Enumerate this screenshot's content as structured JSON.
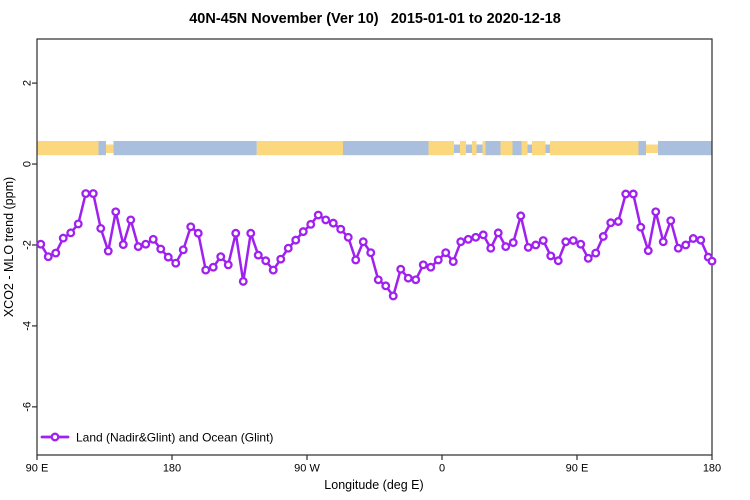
{
  "chart_data": {
    "type": "line",
    "title": "40N-45N November (Ver 10)   2015-01-01 to 2020-12-18",
    "xlabel": "Longitude (deg E)",
    "ylabel": "XCO2 - MLO trend (ppm)",
    "xlim": [
      90,
      540
    ],
    "ylim": [
      -7.19,
      3.09
    ],
    "grid": false,
    "x_ticks": [
      {
        "value": 90,
        "label": "90 E"
      },
      {
        "value": 180,
        "label": "180"
      },
      {
        "value": 270,
        "label": "90 W"
      },
      {
        "value": 360,
        "label": "0"
      },
      {
        "value": 450,
        "label": "90 E"
      },
      {
        "value": 540,
        "label": "180"
      }
    ],
    "y_ticks": [
      {
        "value": 2,
        "label": "2"
      },
      {
        "value": 0,
        "label": "0"
      },
      {
        "value": -2,
        "label": "-2"
      },
      {
        "value": -4,
        "label": "-4"
      },
      {
        "value": -6,
        "label": "-6"
      }
    ],
    "legend": {
      "position": "bottom-left"
    },
    "series": [
      {
        "name": "Land (Nadir&Glint) and Ocean (Glint)",
        "color": "#A020F0",
        "marker": "open-circle",
        "x": [
          92.5,
          97.5,
          102.5,
          107.5,
          112.5,
          117.5,
          122.5,
          127.5,
          132.5,
          137.5,
          142.5,
          147.5,
          152.5,
          157.5,
          162.5,
          167.5,
          172.5,
          177.5,
          182.5,
          187.5,
          192.5,
          197.5,
          202.5,
          207.5,
          212.5,
          217.5,
          222.5,
          227.5,
          232.5,
          237.5,
          242.5,
          247.5,
          252.5,
          257.5,
          262.5,
          267.5,
          272.5,
          277.5,
          282.5,
          287.5,
          292.5,
          297.5,
          302.5,
          307.5,
          312.5,
          317.5,
          322.5,
          327.5,
          332.5,
          337.5,
          342.5,
          347.5,
          352.5,
          357.5,
          362.5,
          367.5,
          372.5,
          377.5,
          382.5,
          387.5,
          392.5,
          397.5,
          402.5,
          407.5,
          412.5,
          417.5,
          422.5,
          427.5,
          432.5,
          437.5,
          442.5,
          447.5,
          452.5,
          457.5,
          462.5,
          467.5,
          472.5,
          477.5,
          482.5,
          487.5,
          492.5,
          497.5,
          502.5,
          507.5,
          512.5,
          517.5,
          522.5,
          527.5,
          532.5,
          537.5,
          540
        ],
        "values": [
          -1.98,
          -2.29,
          -2.2,
          -1.83,
          -1.7,
          -1.48,
          -0.73,
          -0.73,
          -1.59,
          -2.15,
          -1.18,
          -1.99,
          -1.38,
          -2.04,
          -1.98,
          -1.86,
          -2.1,
          -2.3,
          -2.45,
          -2.12,
          -1.55,
          -1.71,
          -2.62,
          -2.55,
          -2.29,
          -2.49,
          -1.71,
          -2.9,
          -1.71,
          -2.25,
          -2.39,
          -2.62,
          -2.35,
          -2.08,
          -1.88,
          -1.67,
          -1.49,
          -1.26,
          -1.38,
          -1.46,
          -1.61,
          -1.81,
          -2.37,
          -1.92,
          -2.19,
          -2.86,
          -3.01,
          -3.26,
          -2.6,
          -2.82,
          -2.86,
          -2.49,
          -2.55,
          -2.37,
          -2.19,
          -2.41,
          -1.92,
          -1.86,
          -1.81,
          -1.75,
          -2.08,
          -1.7,
          -2.04,
          -1.94,
          -1.28,
          -2.06,
          -2.0,
          -1.89,
          -2.27,
          -2.39,
          -1.92,
          -1.89,
          -1.98,
          -2.33,
          -2.2,
          -1.79,
          -1.45,
          -1.42,
          -0.74,
          -0.74,
          -1.56,
          -2.14,
          -1.18,
          -1.92,
          -1.4,
          -2.08,
          -2.0,
          -1.84,
          -1.88,
          -2.3,
          -2.4
        ]
      }
    ],
    "land_ocean_band": {
      "description": "horizontal map strip showing land (yellow) vs ocean (blue) along 40N-45N",
      "y_range": [
        0.22,
        0.57
      ],
      "land_color": "#FBD77E",
      "ocean_color": "#A9BFDD",
      "segments": [
        {
          "from": 90,
          "to": 131,
          "surface": "land"
        },
        {
          "from": 131,
          "to": 136,
          "surface": "ocean"
        },
        {
          "from": 136,
          "to": 141,
          "surface": "land",
          "partial": true
        },
        {
          "from": 141,
          "to": 236.5,
          "surface": "ocean"
        },
        {
          "from": 236.5,
          "to": 294,
          "surface": "land"
        },
        {
          "from": 294,
          "to": 351,
          "surface": "ocean"
        },
        {
          "from": 351,
          "to": 368,
          "surface": "land"
        },
        {
          "from": 368,
          "to": 372,
          "surface": "ocean",
          "partial": true
        },
        {
          "from": 372,
          "to": 376,
          "surface": "land"
        },
        {
          "from": 376,
          "to": 380,
          "surface": "ocean",
          "partial": true
        },
        {
          "from": 380,
          "to": 383,
          "surface": "land"
        },
        {
          "from": 383,
          "to": 387,
          "surface": "ocean",
          "partial": true
        },
        {
          "from": 387,
          "to": 389,
          "surface": "land"
        },
        {
          "from": 389,
          "to": 399,
          "surface": "ocean"
        },
        {
          "from": 399,
          "to": 407,
          "surface": "land"
        },
        {
          "from": 407,
          "to": 413,
          "surface": "ocean"
        },
        {
          "from": 413,
          "to": 417,
          "surface": "land"
        },
        {
          "from": 417,
          "to": 420,
          "surface": "ocean",
          "partial": true
        },
        {
          "from": 420,
          "to": 429,
          "surface": "land"
        },
        {
          "from": 429,
          "to": 432,
          "surface": "ocean",
          "partial": true
        },
        {
          "from": 432,
          "to": 491,
          "surface": "land"
        },
        {
          "from": 491,
          "to": 496,
          "surface": "ocean"
        },
        {
          "from": 496,
          "to": 504,
          "surface": "land",
          "partial": true
        },
        {
          "from": 504,
          "to": 540,
          "surface": "ocean"
        }
      ]
    }
  }
}
